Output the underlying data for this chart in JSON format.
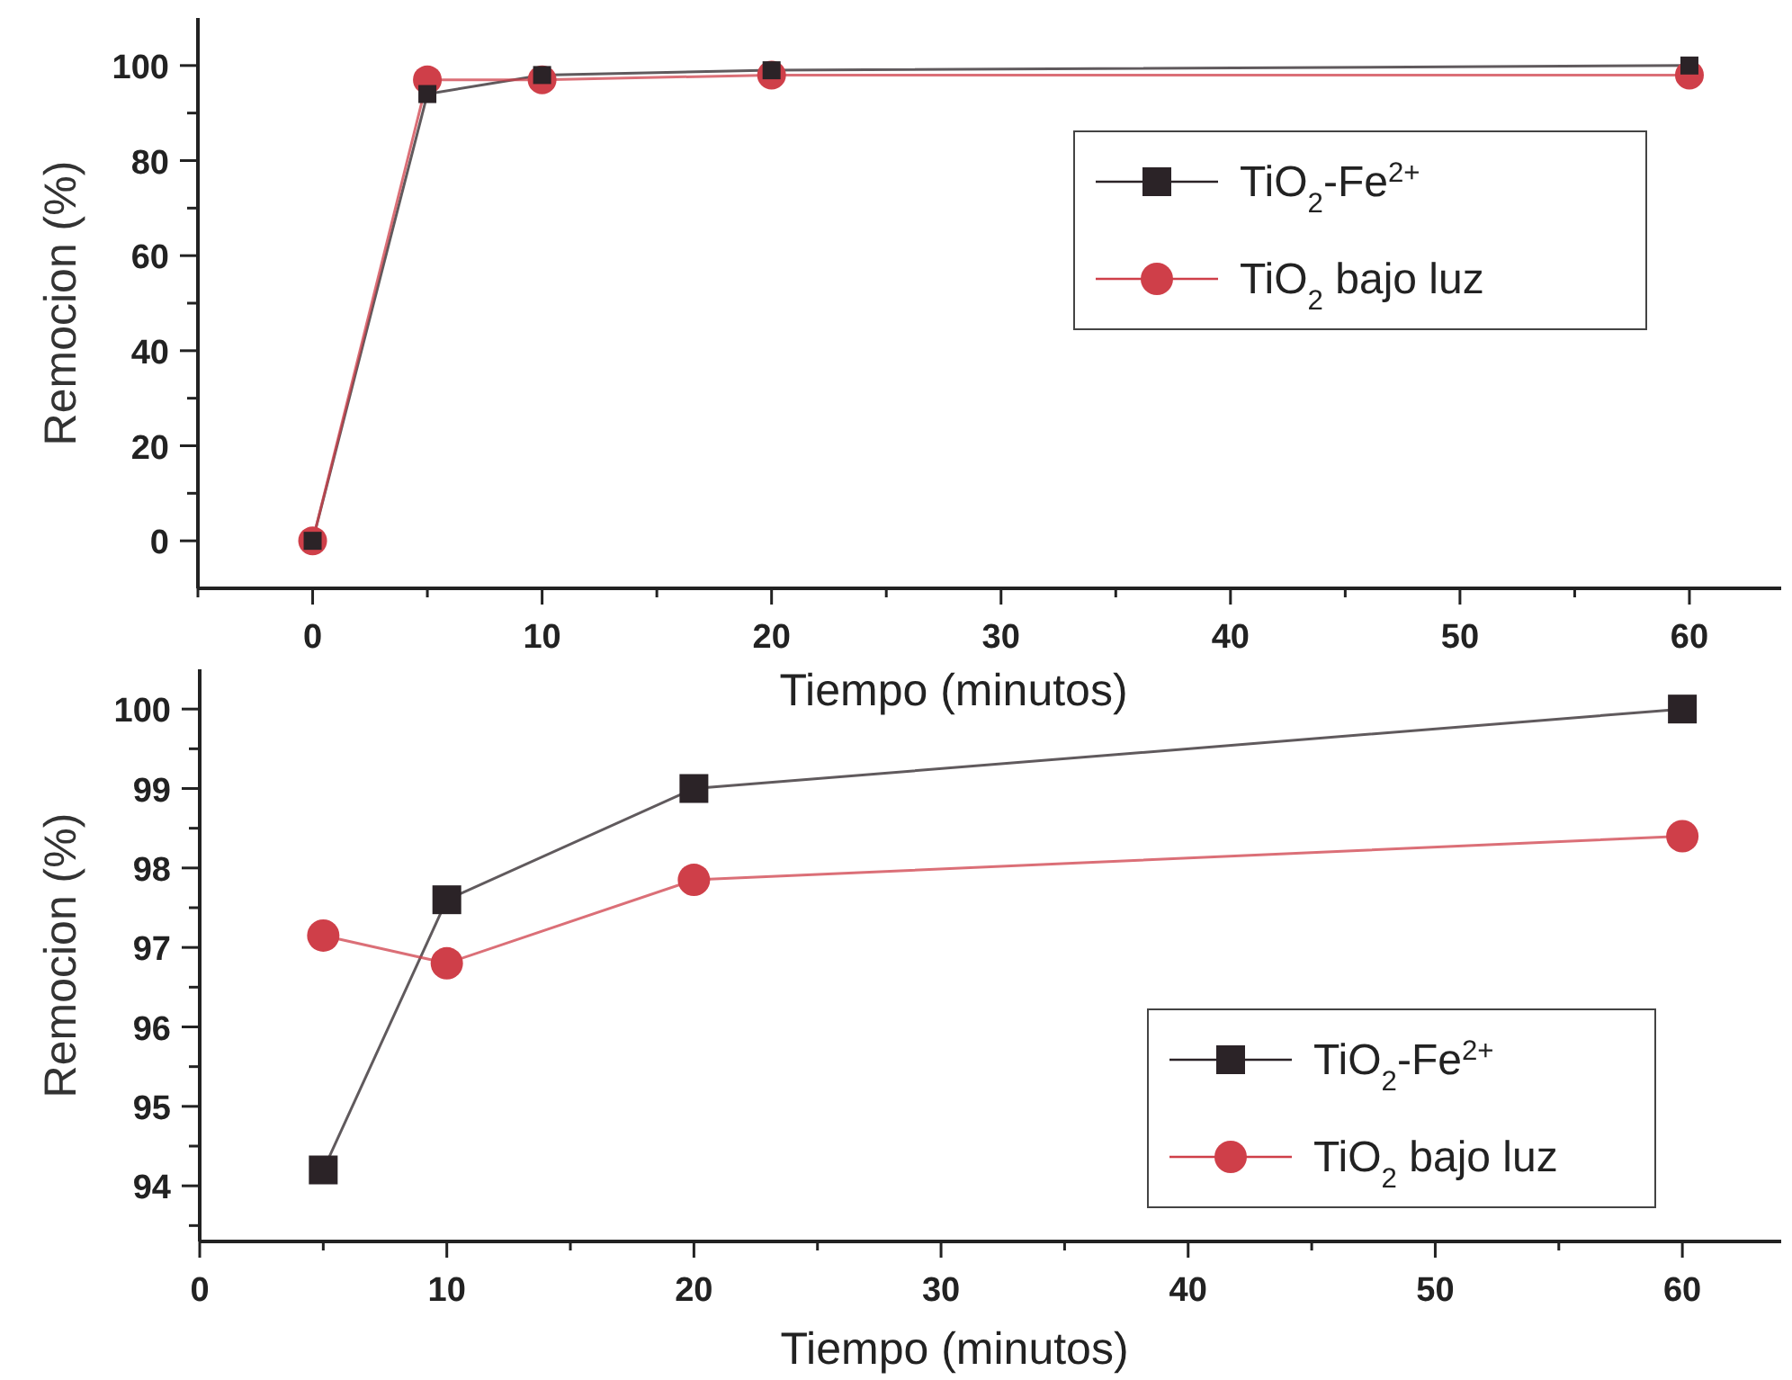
{
  "chart_data": [
    {
      "type": "line",
      "xlabel": "Tiempo (minutos)",
      "ylabel": "Remocion (%)",
      "x": [
        0,
        5,
        10,
        20,
        60
      ],
      "series": [
        {
          "name": "TiO$_{2}$-Fe$^{2+}$",
          "color": "#2b2327",
          "marker": "square",
          "values": [
            0,
            94,
            98,
            99,
            100
          ]
        },
        {
          "name": "TiO$_{2}$ bajo luz",
          "color": "#cf3f49",
          "marker": "circle",
          "values": [
            0,
            97,
            97,
            98,
            98
          ]
        }
      ],
      "xlim": [
        -5,
        64
      ],
      "ylim": [
        -10,
        110
      ],
      "xticks": [
        {
          "value": -5,
          "label": null
        },
        0,
        {
          "value": 5,
          "label": null
        },
        10,
        {
          "value": 15,
          "label": null
        },
        20,
        {
          "value": 25,
          "label": null
        },
        30,
        {
          "value": 35,
          "label": null
        },
        40,
        {
          "value": 45,
          "label": null
        },
        50,
        {
          "value": 55,
          "label": null
        },
        60
      ],
      "yticks": [
        0,
        {
          "value": 10,
          "label": null
        },
        20,
        {
          "value": 30,
          "label": null
        },
        40,
        {
          "value": 50,
          "label": null
        },
        60,
        {
          "value": 70,
          "label": null
        },
        80,
        {
          "value": 90,
          "label": null
        },
        100
      ],
      "grid": false,
      "legend": "top right",
      "line_style": "solid"
    },
    {
      "type": "line",
      "xlabel": "Tiempo (minutos)",
      "ylabel": "Remocion (%)",
      "x": [
        5,
        10,
        20,
        60
      ],
      "series": [
        {
          "name": "TiO$_{2}$-Fe$^{2+}$",
          "color": "#2b2327",
          "marker": "square",
          "values": [
            94.2,
            97.6,
            99,
            100
          ]
        },
        {
          "name": "TiO$_{2}$ bajo luz",
          "color": "#cf3f49",
          "marker": "circle",
          "values": [
            97.15,
            96.8,
            97.85,
            98.4
          ]
        }
      ],
      "xlim": [
        0,
        64
      ],
      "ylim": [
        93.3,
        100.5
      ],
      "xticks": [
        0,
        {
          "value": 5,
          "label": null
        },
        10,
        {
          "value": 15,
          "label": null
        },
        20,
        {
          "value": 25,
          "label": null
        },
        30,
        {
          "value": 35,
          "label": null
        },
        40,
        {
          "value": 45,
          "label": null
        },
        50,
        {
          "value": 55,
          "label": null
        },
        60
      ],
      "yticks": [
        {
          "value": 93.5,
          "label": null
        },
        94,
        {
          "value": 94.5,
          "label": null
        },
        95,
        {
          "value": 95.5,
          "label": null
        },
        96,
        {
          "value": 96.5,
          "label": null
        },
        97,
        {
          "value": 97.5,
          "label": null
        },
        98,
        {
          "value": 98.5,
          "label": null
        },
        99,
        {
          "value": 99.5,
          "label": null
        },
        100
      ],
      "grid": false,
      "legend": "right",
      "line_style": "solid"
    }
  ]
}
